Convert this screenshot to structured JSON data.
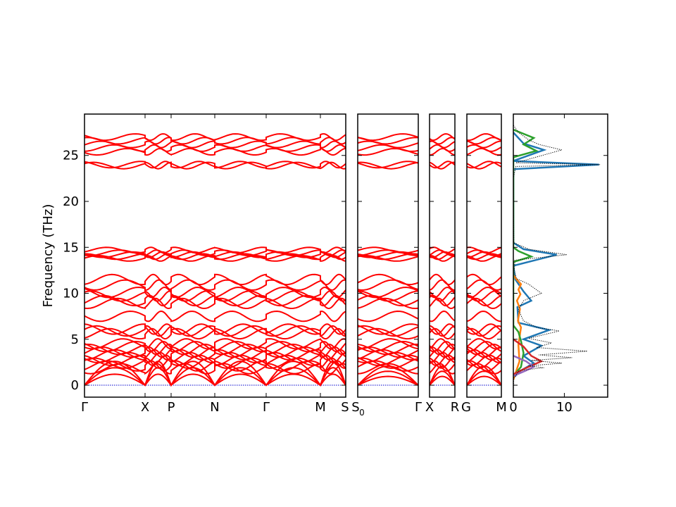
{
  "chart_data": {
    "type": "line",
    "ylabel": "Frequency (THz)",
    "ylim": [
      -1.3,
      29.5
    ],
    "yticks": [
      0,
      5,
      10,
      15,
      20,
      25
    ],
    "ytick_labels": [
      "0",
      "5",
      "10",
      "15",
      "20",
      "25"
    ],
    "band_color": "#ff0000",
    "zero_line_color": "#0000cc",
    "band_panels": [
      {
        "segments": [
          {
            "ticks": [
              "Γ",
              "X"
            ],
            "x": [
              0,
              1
            ]
          },
          {
            "ticks": [
              "X",
              "P"
            ],
            "x": [
              0,
              0.42
            ]
          },
          {
            "ticks": [
              "P",
              "N"
            ],
            "x": [
              0,
              0.72
            ]
          },
          {
            "ticks": [
              "N",
              "Γ"
            ],
            "x": [
              0,
              0.86
            ]
          },
          {
            "ticks": [
              "Γ",
              "M"
            ],
            "x": [
              0,
              0.92
            ]
          },
          {
            "ticks": [
              "M",
              "S"
            ],
            "x": [
              0,
              0.41
            ]
          }
        ]
      },
      {
        "segments": [
          {
            "ticks": [
              "S",
              "Γ"
            ],
            "x": [
              0,
              1
            ]
          }
        ],
        "left_label": "S0"
      },
      {
        "segments": [
          {
            "ticks": [
              "X",
              "R"
            ],
            "x": [
              0,
              1
            ]
          }
        ]
      },
      {
        "segments": [
          {
            "ticks": [
              "G",
              "M"
            ],
            "x": [
              0,
              1
            ]
          }
        ]
      }
    ],
    "band_tick_labels": [
      "Γ",
      "X",
      "P",
      "N",
      "Γ",
      "M",
      "S",
      "S",
      "0",
      "Γ",
      "X",
      "R",
      "G",
      "M"
    ],
    "bands_at_gamma_thz": [
      0,
      0,
      0,
      1.8,
      2.1,
      2.4,
      2.7,
      3.0,
      3.3,
      3.6,
      3.9,
      4.2,
      4.5,
      5.6,
      5.9,
      6.1,
      7.5,
      8.9,
      9.2,
      9.7,
      10.1,
      10.9,
      11.5,
      13.8,
      14.0,
      14.2,
      14.4,
      14.7,
      23.9,
      24.0,
      25.4,
      25.8,
      26.2,
      26.6,
      27.0
    ],
    "dos": {
      "xlim": [
        0,
        18.5
      ],
      "xticks": [
        0,
        10
      ],
      "xtick_labels": [
        "0",
        "10"
      ],
      "total": [
        [
          0.0,
          -0.5
        ],
        [
          0.1,
          0.8
        ],
        [
          1.2,
          1.6
        ],
        [
          6.0,
          1.9
        ],
        [
          3.0,
          2.1
        ],
        [
          9.5,
          2.4
        ],
        [
          3.5,
          2.7
        ],
        [
          11.5,
          3.0
        ],
        [
          5.0,
          3.3
        ],
        [
          14.5,
          3.7
        ],
        [
          4.5,
          4.1
        ],
        [
          7.5,
          4.6
        ],
        [
          3.0,
          5.1
        ],
        [
          9.0,
          5.9
        ],
        [
          4.5,
          6.3
        ],
        [
          2.0,
          7.0
        ],
        [
          1.0,
          8.2
        ],
        [
          2.0,
          9.2
        ],
        [
          5.5,
          10.0
        ],
        [
          3.0,
          11.0
        ],
        [
          0.6,
          11.6
        ],
        [
          0.2,
          12.5
        ],
        [
          0.3,
          13.6
        ],
        [
          10.5,
          14.2
        ],
        [
          3.0,
          14.8
        ],
        [
          0.1,
          15.5
        ],
        [
          0.0,
          22.5
        ],
        [
          0.5,
          23.8
        ],
        [
          17.0,
          24.0
        ],
        [
          0.5,
          24.2
        ],
        [
          9.5,
          25.6
        ],
        [
          5.0,
          26.2
        ],
        [
          3.0,
          26.7
        ],
        [
          1.0,
          27.5
        ],
        [
          0.0,
          28.3
        ]
      ],
      "series": [
        {
          "color": "#1f77b4",
          "points": [
            [
              0.0,
              0.8
            ],
            [
              1.5,
              1.6
            ],
            [
              4.0,
              2.4
            ],
            [
              2.0,
              3.2
            ],
            [
              5.5,
              4.3
            ],
            [
              2.0,
              5.0
            ],
            [
              7.0,
              6.0
            ],
            [
              1.0,
              6.8
            ],
            [
              0.8,
              8.5
            ],
            [
              3.5,
              9.2
            ],
            [
              2.0,
              10.2
            ],
            [
              0.4,
              11.5
            ],
            [
              0.0,
              13.0
            ],
            [
              8.5,
              14.2
            ],
            [
              2.0,
              14.8
            ],
            [
              0.0,
              15.5
            ],
            [
              0.0,
              23.5
            ],
            [
              16.8,
              24.0
            ],
            [
              0.0,
              24.4
            ],
            [
              6.0,
              25.6
            ],
            [
              2.0,
              26.3
            ],
            [
              0.0,
              27.5
            ]
          ]
        },
        {
          "color": "#ff7f0e",
          "points": [
            [
              0.0,
              0.6
            ],
            [
              1.2,
              2.6
            ],
            [
              1.0,
              4.4
            ],
            [
              1.5,
              6.3
            ],
            [
              0.9,
              7.0
            ],
            [
              1.3,
              8.3
            ],
            [
              0.7,
              9.2
            ],
            [
              1.4,
              9.9
            ],
            [
              1.0,
              10.4
            ],
            [
              1.5,
              11.0
            ],
            [
              0.5,
              11.6
            ],
            [
              0.0,
              12.0
            ]
          ]
        },
        {
          "color": "#2ca02c",
          "points": [
            [
              0.0,
              1.0
            ],
            [
              1.5,
              2.0
            ],
            [
              2.0,
              3.5
            ],
            [
              1.5,
              4.8
            ],
            [
              1.0,
              5.8
            ],
            [
              0.0,
              6.5
            ],
            [
              0.0,
              13.4
            ],
            [
              3.5,
              14.0
            ],
            [
              1.0,
              14.6
            ],
            [
              0.0,
              15.0
            ],
            [
              0.0,
              24.8
            ],
            [
              4.5,
              25.5
            ],
            [
              2.0,
              26.2
            ],
            [
              4.0,
              26.9
            ],
            [
              0.0,
              27.8
            ]
          ]
        },
        {
          "color": "#d62728",
          "points": [
            [
              0.0,
              1.2
            ],
            [
              3.0,
              2.0
            ],
            [
              5.5,
              2.6
            ],
            [
              3.5,
              3.2
            ],
            [
              2.0,
              4.2
            ],
            [
              0.0,
              5.0
            ]
          ]
        },
        {
          "color": "#9467bd",
          "points": [
            [
              0.0,
              1.0
            ],
            [
              2.5,
              1.6
            ],
            [
              4.0,
              2.0
            ],
            [
              2.5,
              2.6
            ],
            [
              0.0,
              3.2
            ]
          ]
        }
      ]
    }
  }
}
